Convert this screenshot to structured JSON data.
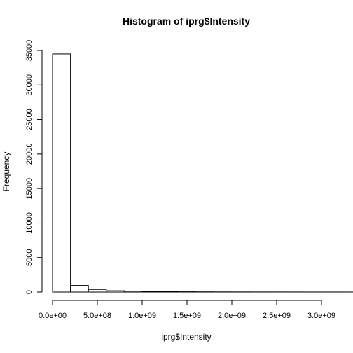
{
  "chart_data": {
    "type": "bar",
    "title": "Histogram of iprg$Intensity",
    "xlabel": "iprg$Intensity",
    "ylabel": "Frequency",
    "bin_width": 200000000,
    "bins_start": 0,
    "values": [
      34500,
      950,
      380,
      190,
      130,
      90,
      55,
      40,
      28,
      20,
      15,
      12,
      10,
      8,
      6,
      5,
      4,
      3,
      3,
      2,
      2,
      1,
      1,
      1,
      1,
      1,
      1,
      1,
      1,
      1
    ],
    "xlim": [
      0,
      3000000000
    ],
    "ylim": [
      0,
      35000
    ],
    "x_ticks": [
      {
        "value": 0,
        "label": "0.0e+00"
      },
      {
        "value": 500000000,
        "label": "5.0e+08"
      },
      {
        "value": 1000000000,
        "label": "1.0e+09"
      },
      {
        "value": 1500000000,
        "label": "1.5e+09"
      },
      {
        "value": 2000000000,
        "label": "2.0e+09"
      },
      {
        "value": 2500000000,
        "label": "2.5e+09"
      },
      {
        "value": 3000000000,
        "label": "3.0e+09"
      }
    ],
    "y_ticks": [
      {
        "value": 0,
        "label": "0"
      },
      {
        "value": 5000,
        "label": "5000"
      },
      {
        "value": 10000,
        "label": "10000"
      },
      {
        "value": 15000,
        "label": "15000"
      },
      {
        "value": 20000,
        "label": "20000"
      },
      {
        "value": 25000,
        "label": "25000"
      },
      {
        "value": 30000,
        "label": "30000"
      },
      {
        "value": 35000,
        "label": "35000"
      }
    ],
    "grid": false,
    "bar_fill": "#ffffff",
    "bar_stroke": "#000000"
  }
}
